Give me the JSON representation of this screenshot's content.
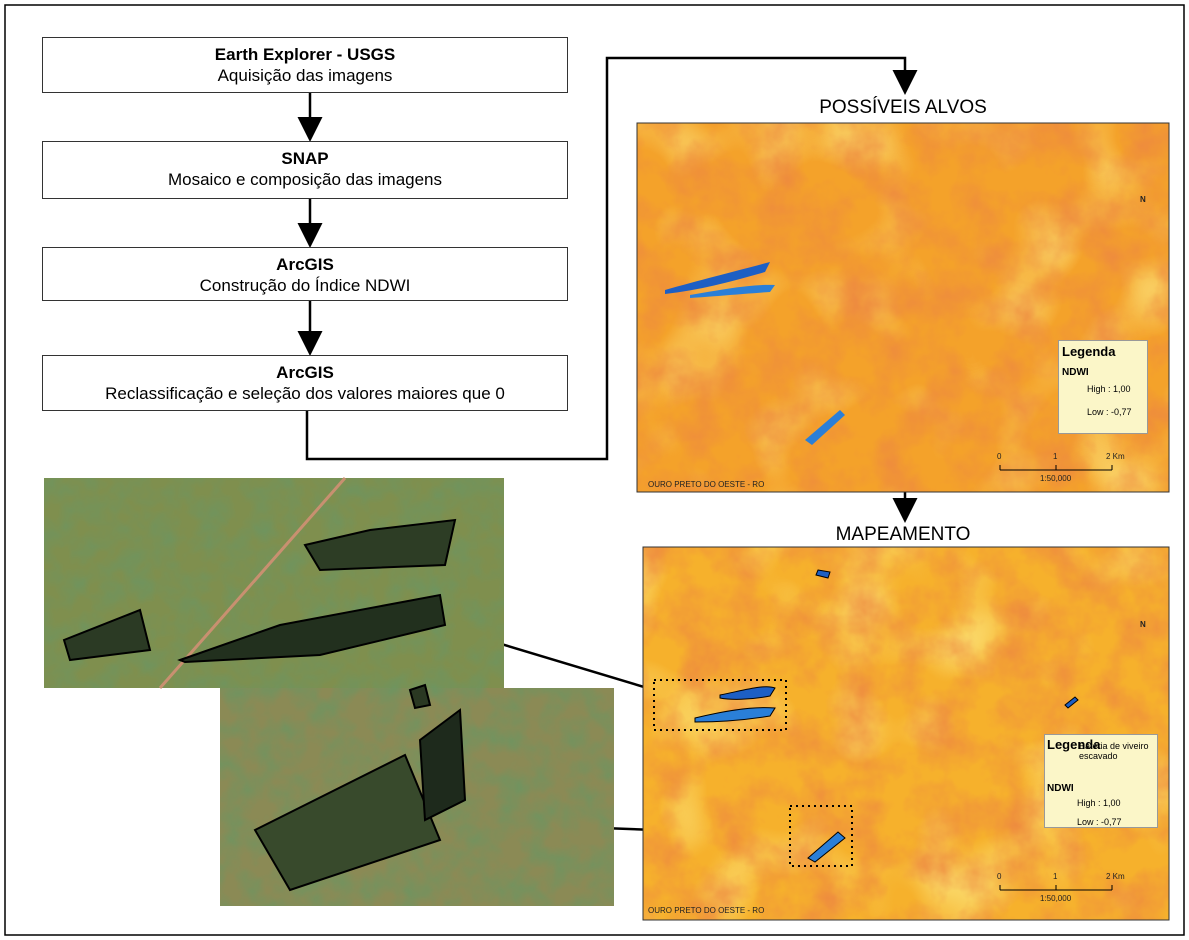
{
  "steps": [
    {
      "title": "Earth Explorer - USGS",
      "subtitle": "Aquisição das imagens"
    },
    {
      "title": "SNAP",
      "subtitle": "Mosaico e composição das imagens"
    },
    {
      "title": "ArcGIS",
      "subtitle": "Construção do Índice NDWI"
    },
    {
      "title": "ArcGIS",
      "subtitle": "Reclassificação e seleção dos valores maiores que 0"
    }
  ],
  "maps": [
    {
      "title": "POSSÍVEIS ALVOS",
      "legend_title": "Legenda",
      "ndwi": "NDWI",
      "high": "High : 1,00",
      "low": "Low : -0,77",
      "scale": [
        "0",
        "1",
        "2 Km"
      ],
      "ratio": "1:50,000",
      "place": "OURO PRETO DO OESTE - RO",
      "north": "N"
    },
    {
      "title": "MAPEAMENTO",
      "legend_title": "Legenda",
      "legend_item": "Bateria de viveiro escavado",
      "ndwi": "NDWI",
      "high": "High : 1,00",
      "low": "Low : -0,77",
      "scale": [
        "0",
        "1",
        "2 Km"
      ],
      "ratio": "1:50,000",
      "place": "OURO PRETO DO OESTE - RO",
      "north": "N"
    }
  ]
}
